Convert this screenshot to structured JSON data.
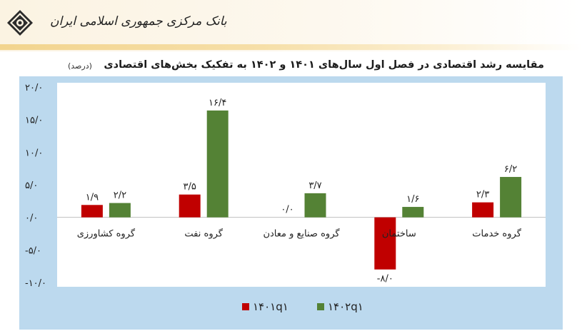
{
  "header": {
    "bank_name": "بانک مرکزی جمهوری اسلامی ایران",
    "logo_icon": "central-bank-logo-icon"
  },
  "chart_data": {
    "type": "bar",
    "title": "مقایسه رشد اقتصادی در فصل اول سال‌های ۱۴۰۱ و ۱۴۰۲ به تفکیک بخش‌های اقتصادی",
    "unit": "(درصد)",
    "categories": [
      "گروه کشاورزی",
      "گروه نفت",
      "گروه صنایع و معادن",
      "ساختمان",
      "گروه خدمات"
    ],
    "series": [
      {
        "name": "۱۴۰۱q۱",
        "color": "#c00000",
        "values": [
          1.9,
          3.5,
          0.0,
          -8.0,
          2.3
        ],
        "labels": [
          "۱/۹",
          "۳/۵",
          "۰/۰",
          "-۸/۰",
          "۲/۳"
        ]
      },
      {
        "name": "۱۴۰۲q۱",
        "color": "#548235",
        "values": [
          2.2,
          16.4,
          3.7,
          1.6,
          6.2
        ],
        "labels": [
          "۲/۲",
          "۱۶/۴",
          "۳/۷",
          "۱/۶",
          "۶/۲"
        ]
      }
    ],
    "ylim": [
      -10,
      20
    ],
    "yticks": [
      20,
      15,
      10,
      5,
      0,
      -5,
      -10
    ],
    "ytick_labels": [
      "۲۰/۰",
      "۱۵/۰",
      "۱۰/۰",
      "۵/۰",
      "۰/۰",
      "-۵/۰",
      "-۱۰/۰"
    ],
    "grid": false,
    "legend_position": "bottom-center"
  }
}
